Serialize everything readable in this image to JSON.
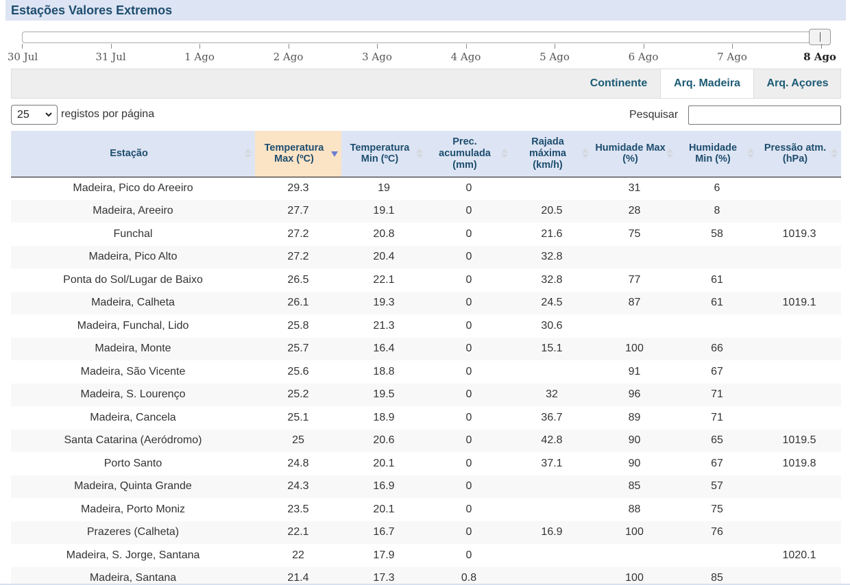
{
  "page": {
    "title": "Estações Valores Extremos"
  },
  "timeline": {
    "dates": [
      "30 Jul",
      "31 Jul",
      "1 Ago",
      "2 Ago",
      "3 Ago",
      "4 Ago",
      "5 Ago",
      "6 Ago",
      "7 Ago",
      "8 Ago"
    ],
    "selected": "8 Ago"
  },
  "tabs": [
    {
      "label": "Continente",
      "active": false
    },
    {
      "label": "Arq. Madeira",
      "active": true
    },
    {
      "label": "Arq. Açores",
      "active": false
    }
  ],
  "length_control": {
    "value": "25",
    "label": "registos por página"
  },
  "search": {
    "label": "Pesquisar",
    "value": ""
  },
  "table": {
    "headers": [
      "Estação",
      "Temperatura Max (ºC)",
      "Temperatura Min (ºC)",
      "Prec. acumulada (mm)",
      "Rajada máxima (km/h)",
      "Humidade Max (%)",
      "Humidade Min (%)",
      "Pressão atm. (hPa)"
    ],
    "sorted_column": 1,
    "rows": [
      [
        "Madeira, Pico do Areeiro",
        "29.3",
        "19",
        "0",
        "",
        "31",
        "6",
        ""
      ],
      [
        "Madeira, Areeiro",
        "27.7",
        "19.1",
        "0",
        "20.5",
        "28",
        "8",
        ""
      ],
      [
        "Funchal",
        "27.2",
        "20.8",
        "0",
        "21.6",
        "75",
        "58",
        "1019.3"
      ],
      [
        "Madeira, Pico Alto",
        "27.2",
        "20.4",
        "0",
        "32.8",
        "",
        "",
        ""
      ],
      [
        "Ponta do Sol/Lugar de Baixo",
        "26.5",
        "22.1",
        "0",
        "32.8",
        "77",
        "61",
        ""
      ],
      [
        "Madeira, Calheta",
        "26.1",
        "19.3",
        "0",
        "24.5",
        "87",
        "61",
        "1019.1"
      ],
      [
        "Madeira, Funchal, Lido",
        "25.8",
        "21.3",
        "0",
        "30.6",
        "",
        "",
        ""
      ],
      [
        "Madeira, Monte",
        "25.7",
        "16.4",
        "0",
        "15.1",
        "100",
        "66",
        ""
      ],
      [
        "Madeira, São Vicente",
        "25.6",
        "18.8",
        "0",
        "",
        "91",
        "67",
        ""
      ],
      [
        "Madeira, S. Lourenço",
        "25.2",
        "19.5",
        "0",
        "32",
        "96",
        "71",
        ""
      ],
      [
        "Madeira, Cancela",
        "25.1",
        "18.9",
        "0",
        "36.7",
        "89",
        "71",
        ""
      ],
      [
        "Santa Catarina (Aeródromo)",
        "25",
        "20.6",
        "0",
        "42.8",
        "90",
        "65",
        "1019.5"
      ],
      [
        "Porto Santo",
        "24.8",
        "20.1",
        "0",
        "37.1",
        "90",
        "67",
        "1019.8"
      ],
      [
        "Madeira, Quinta Grande",
        "24.3",
        "16.9",
        "0",
        "",
        "85",
        "57",
        ""
      ],
      [
        "Madeira, Porto Moniz",
        "23.5",
        "20.1",
        "0",
        "",
        "88",
        "75",
        ""
      ],
      [
        "Prazeres (Calheta)",
        "22.1",
        "16.7",
        "0",
        "16.9",
        "100",
        "76",
        ""
      ],
      [
        "Madeira, S. Jorge, Santana",
        "22",
        "17.9",
        "0",
        "",
        "",
        "",
        "1020.1"
      ],
      [
        "Madeira, Santana",
        "21.4",
        "17.3",
        "0.8",
        "",
        "100",
        "85",
        ""
      ]
    ]
  },
  "colors": {
    "title_bg": "#dde4f3",
    "title_text": "#1d4d6e",
    "tab_text": "#1b5a74",
    "sorted_header_bg": "#fbe3c6",
    "sort_active_arrow": "#6a7fd1"
  }
}
